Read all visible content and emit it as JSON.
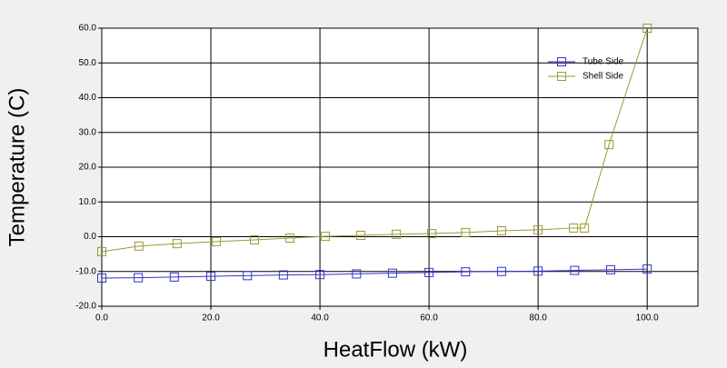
{
  "chart_data": {
    "type": "line",
    "xlabel": "HeatFlow (kW)",
    "ylabel": "Temperature (C)",
    "xlim": [
      0,
      109.3
    ],
    "ylim": [
      -20,
      60
    ],
    "xticks": [
      {
        "value": 0,
        "label": "0.0"
      },
      {
        "value": 20,
        "label": "20.0"
      },
      {
        "value": 40,
        "label": "40.0"
      },
      {
        "value": 60,
        "label": "60.0"
      },
      {
        "value": 80,
        "label": "80.0"
      },
      {
        "value": 100,
        "label": "100.0"
      }
    ],
    "yticks": [
      {
        "value": -20,
        "label": "-20.0"
      },
      {
        "value": -10,
        "label": "-10.0"
      },
      {
        "value": 0,
        "label": "0.0"
      },
      {
        "value": 10,
        "label": "10.0"
      },
      {
        "value": 20,
        "label": "20.0"
      },
      {
        "value": 30,
        "label": "30.0"
      },
      {
        "value": 40,
        "label": "40.0"
      },
      {
        "value": 50,
        "label": "50.0"
      },
      {
        "value": 60,
        "label": "60.0"
      }
    ],
    "grid": true,
    "legend": "upper right",
    "series": [
      {
        "name": "Tube Side",
        "color": "#3333cc",
        "x": [
          0,
          6.7,
          13.3,
          20,
          26.7,
          33.3,
          40,
          46.7,
          53.3,
          60,
          66.7,
          73.3,
          80,
          86.7,
          93.3,
          100
        ],
        "values": [
          -11.9,
          -11.8,
          -11.6,
          -11.4,
          -11.2,
          -11.0,
          -10.9,
          -10.7,
          -10.5,
          -10.3,
          -10.1,
          -10.0,
          -9.9,
          -9.7,
          -9.5,
          -9.3
        ]
      },
      {
        "name": "Shell Side",
        "color": "#999933",
        "x": [
          0,
          6.8,
          13.8,
          21,
          28,
          34.5,
          41,
          47.5,
          54,
          60.5,
          66.7,
          73.3,
          80,
          86.5,
          88.5,
          93,
          100
        ],
        "values": [
          -4.3,
          -2.7,
          -2.0,
          -1.4,
          -0.9,
          -0.4,
          0.1,
          0.4,
          0.7,
          0.9,
          1.2,
          1.7,
          2.0,
          2.5,
          2.5,
          26.5,
          60
        ]
      }
    ]
  }
}
